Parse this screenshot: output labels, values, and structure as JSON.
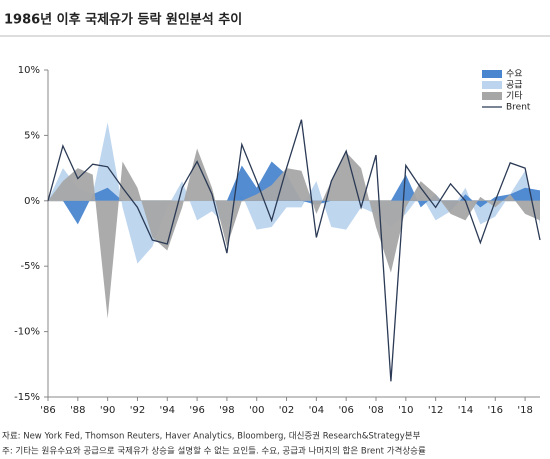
{
  "chart_data": {
    "type": "area",
    "title": "1986년 이후 국제유가 등락 원인분석 추이",
    "source": "자료: New York Fed, Thomson Reuters, Haver Analytics, Bloomberg, 대신증권 Research&Strategy본부",
    "note": "주: 기타는 원유수요와 공급으로 국제유가 상승을 설명할 수 없는 요인들. 수요, 공급과 나머지의 합은 Brent 가격상승률",
    "x": [
      1986,
      1987,
      1988,
      1989,
      1990,
      1991,
      1992,
      1993,
      1994,
      1995,
      1996,
      1997,
      1998,
      1999,
      2000,
      2001,
      2002,
      2003,
      2004,
      2005,
      2006,
      2007,
      2008,
      2009,
      2010,
      2011,
      2012,
      2013,
      2014,
      2015,
      2016,
      2017,
      2018,
      2019
    ],
    "xlim": [
      1986,
      2019
    ],
    "xticks": [
      {
        "value": 1986,
        "label": "'86"
      },
      {
        "value": 1988,
        "label": "'88"
      },
      {
        "value": 1990,
        "label": "'90"
      },
      {
        "value": 1992,
        "label": "'92"
      },
      {
        "value": 1994,
        "label": "'94"
      },
      {
        "value": 1996,
        "label": "'96"
      },
      {
        "value": 1998,
        "label": "'98"
      },
      {
        "value": 2000,
        "label": "'00"
      },
      {
        "value": 2002,
        "label": "'02"
      },
      {
        "value": 2004,
        "label": "'04"
      },
      {
        "value": 2006,
        "label": "'06"
      },
      {
        "value": 2008,
        "label": "'08"
      },
      {
        "value": 2010,
        "label": "'10"
      },
      {
        "value": 2012,
        "label": "'12"
      },
      {
        "value": 2014,
        "label": "'14"
      },
      {
        "value": 2016,
        "label": "'16"
      },
      {
        "value": 2018,
        "label": "'18"
      }
    ],
    "ylim": [
      -15,
      10
    ],
    "yticks": [
      {
        "value": 10,
        "label": "10%"
      },
      {
        "value": 5,
        "label": "5%"
      },
      {
        "value": 0,
        "label": "0%"
      },
      {
        "value": -5,
        "label": "-5%"
      },
      {
        "value": -10,
        "label": "-10%"
      },
      {
        "value": -15,
        "label": "-15%"
      }
    ],
    "legend": "top-right",
    "series": [
      {
        "name": "수요",
        "color": "#4a86cf",
        "kind": "area",
        "values": [
          0,
          0,
          -1.8,
          0.5,
          1.0,
          0,
          0,
          0,
          0,
          0,
          0,
          0,
          0,
          2.7,
          1.0,
          3.0,
          2.0,
          0,
          -0.3,
          0,
          0,
          0,
          0,
          0,
          2.0,
          -0.5,
          0.5,
          -0.8,
          0.5,
          -0.5,
          0.3,
          0.5,
          1.0,
          0.8
        ]
      },
      {
        "name": "공급",
        "color": "#bcd4ee",
        "kind": "area",
        "values": [
          0,
          2.5,
          1.0,
          0.5,
          6.0,
          -0.5,
          -4.8,
          -3.5,
          -0.5,
          1.5,
          -1.5,
          -0.8,
          -2.0,
          0.5,
          -2.2,
          -2.0,
          -0.5,
          -0.5,
          1.5,
          -2.0,
          -2.2,
          -0.5,
          -1.0,
          -2.0,
          -1.0,
          0.5,
          -1.5,
          -0.8,
          1.0,
          -1.8,
          -1.2,
          0.5,
          2.3,
          -1.8
        ]
      },
      {
        "name": "기타",
        "color": "#a6a6a6",
        "kind": "area",
        "values": [
          0,
          1.5,
          2.5,
          2.0,
          -9.0,
          3.0,
          1.0,
          -2.8,
          -3.8,
          -0.5,
          4.0,
          1.0,
          -3.5,
          0,
          0.5,
          1.2,
          2.5,
          2.3,
          -1.0,
          1.5,
          3.7,
          2.5,
          -2.0,
          -5.5,
          -0.5,
          1.5,
          0.5,
          -1.0,
          -1.5,
          0.3,
          -0.5,
          0.5,
          -1.0,
          -1.5
        ]
      },
      {
        "name": "Brent",
        "color": "#2b3a55",
        "kind": "line",
        "values": [
          0,
          4.2,
          1.7,
          2.8,
          2.6,
          1.0,
          -0.5,
          -3.0,
          -3.3,
          1.0,
          3.0,
          0.5,
          -4.0,
          4.3,
          1.5,
          -1.5,
          2.5,
          6.2,
          -2.8,
          1.5,
          3.8,
          -0.5,
          3.5,
          -13.8,
          2.7,
          1.0,
          -0.5,
          1.3,
          0,
          -3.2,
          0,
          2.9,
          2.5,
          -3.0
        ]
      }
    ]
  }
}
